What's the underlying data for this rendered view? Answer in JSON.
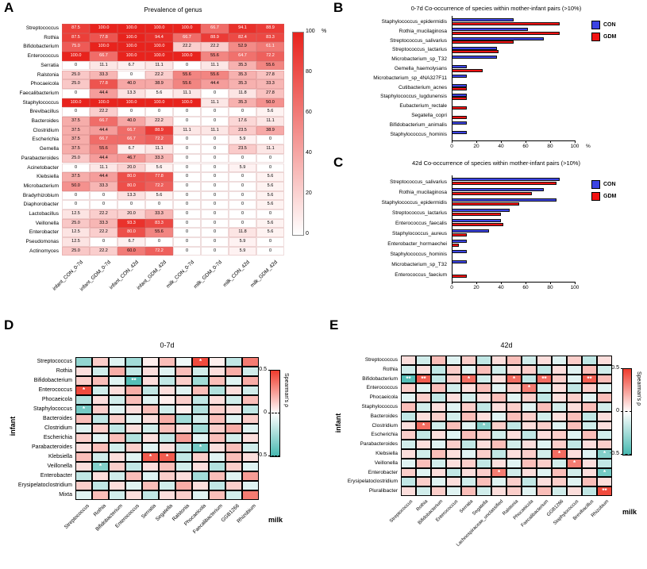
{
  "figure": {
    "panel_labels": {
      "A": "A",
      "B": "B",
      "C": "C",
      "D": "D",
      "E": "E"
    }
  },
  "chart_data": [
    {
      "id": "A",
      "type": "heatmap",
      "title": "Prevalence of genus",
      "rows": [
        "Streptococcus",
        "Rothia",
        "Bifidobacterium",
        "Enterococcus",
        "Serratia",
        "Ralstonia",
        "Phocaeicola",
        "Faecalibacterium",
        "Staphylococcus",
        "Brevibacillus",
        "Bacteroides",
        "Clostridium",
        "Escherichia",
        "Gemella",
        "Parabacteroides",
        "Acinetobacter",
        "Klebsiella",
        "Microbacterium",
        "Bradyrhizobium",
        "Diaphorobacter",
        "Lactobacillus",
        "Veillonella",
        "Enterobacter",
        "Pseudomonas",
        "Actinomyces"
      ],
      "columns": [
        "infant_CON_0-7d",
        "infant_GDM_0-7d",
        "infant_CON_42d",
        "infant_GDM_42d",
        "milk_CON_0-7d",
        "milk_GDM_0-7d",
        "milk_CON_42d",
        "milk_GDM_42d"
      ],
      "values": [
        [
          87.5,
          100.0,
          100.0,
          100.0,
          100.0,
          66.7,
          94.1,
          88.9
        ],
        [
          87.5,
          77.8,
          100.0,
          94.4,
          66.7,
          88.9,
          82.4,
          83.3
        ],
        [
          75.0,
          100.0,
          100.0,
          100.0,
          22.2,
          22.2,
          52.9,
          61.1
        ],
        [
          100.0,
          66.7,
          100.0,
          100.0,
          100.0,
          55.6,
          64.7,
          72.2
        ],
        [
          0,
          11.1,
          6.7,
          11.1,
          0,
          11.1,
          35.3,
          55.6
        ],
        [
          25.0,
          33.3,
          0,
          22.2,
          55.6,
          55.6,
          35.3,
          27.8
        ],
        [
          25.0,
          77.8,
          40.0,
          38.9,
          55.6,
          44.4,
          35.3,
          33.3
        ],
        [
          0,
          44.4,
          13.3,
          5.6,
          11.1,
          0,
          11.8,
          27.8
        ],
        [
          100.0,
          100.0,
          100.0,
          100.0,
          100.0,
          11.1,
          35.3,
          50.0
        ],
        [
          0,
          22.2,
          0,
          0,
          0,
          0,
          0,
          5.6
        ],
        [
          37.5,
          66.7,
          40.0,
          22.2,
          0,
          0,
          17.6,
          11.1
        ],
        [
          37.5,
          44.4,
          66.7,
          88.9,
          11.1,
          11.1,
          23.5,
          38.9
        ],
        [
          37.5,
          66.7,
          66.7,
          72.2,
          0,
          0,
          5.9,
          0
        ],
        [
          37.5,
          55.6,
          6.7,
          11.1,
          0,
          0,
          23.5,
          11.1
        ],
        [
          25.0,
          44.4,
          46.7,
          33.3,
          0,
          0,
          0,
          0
        ],
        [
          0,
          11.1,
          20.0,
          5.6,
          0,
          0,
          5.9,
          0
        ],
        [
          37.5,
          44.4,
          80.0,
          77.8,
          0,
          0,
          0,
          5.6
        ],
        [
          50.0,
          33.3,
          80.0,
          72.2,
          0,
          0,
          0,
          5.6
        ],
        [
          0,
          0,
          13.3,
          5.6,
          0,
          0,
          0,
          5.6
        ],
        [
          0,
          0,
          0,
          0,
          0,
          0,
          0,
          5.6
        ],
        [
          12.5,
          22.2,
          20.0,
          33.3,
          0,
          0,
          0,
          0
        ],
        [
          25.0,
          33.3,
          93.3,
          83.3,
          0,
          0,
          0,
          5.6
        ],
        [
          12.5,
          22.2,
          80.0,
          55.6,
          0,
          0,
          11.8,
          5.6
        ],
        [
          12.5,
          0,
          6.7,
          0,
          0,
          0,
          5.9,
          0
        ],
        [
          25.0,
          22.2,
          60.0,
          72.2,
          0,
          0,
          5.9,
          0
        ]
      ],
      "colorbar": {
        "min": 0,
        "max": 100,
        "ticks": [
          100,
          80,
          60,
          40,
          20,
          0
        ],
        "unit": "%"
      },
      "colors": {
        "low": "#ffffff",
        "high": "#e8231d"
      }
    },
    {
      "id": "B",
      "type": "bar",
      "orientation": "horizontal",
      "title": "0-7d Co-occurrence of species within mother-infant pairs (>10%)",
      "categories": [
        "Staphylococcus_epidermidis",
        "Rothia_mucilaginosa",
        "Streptococcus_salivarius",
        "Streptococcus_lactarius",
        "Microbacterium_sp_T32",
        "Gemella_haemolysans",
        "Microbacterium_sp_4NA327F11",
        "Cutibacterium_acnes",
        "Staphylococcus_lugdunensis",
        "Eubacterium_rectale",
        "Segatella_copri",
        "Bifidobacterium_animalis",
        "Staphylococcus_hominis"
      ],
      "series": [
        {
          "name": "CON",
          "color": "#3b43e3",
          "values": [
            50,
            62,
            75,
            37,
            37,
            12,
            12,
            12,
            12,
            0,
            0,
            12,
            12
          ]
        },
        {
          "name": "GDM",
          "color": "#f21313",
          "values": [
            88,
            88,
            50,
            38,
            0,
            25,
            0,
            12,
            12,
            12,
            12,
            0,
            0
          ]
        }
      ],
      "xlim": [
        0,
        100
      ],
      "xticks": [
        0,
        20,
        40,
        60,
        80,
        100
      ],
      "xunit": "%"
    },
    {
      "id": "C",
      "type": "bar",
      "orientation": "horizontal",
      "title": "42d Co-occurrence of species within mother-infant pairs (>10%)",
      "categories": [
        "Streptococcus_salivarius",
        "Rothia_mucilaginosa",
        "Staphylococcus_epidermidis",
        "Streptococcus_lactarius",
        "Enterococcus_faecalis",
        "Staphylococcus_aureus",
        "Enterobacter_hormaechei",
        "Staphylococcus_hominis",
        "Microbacterium_sp_T32",
        "Enterococcus_faecium"
      ],
      "series": [
        {
          "name": "CON",
          "color": "#3b43e3",
          "values": [
            88,
            75,
            85,
            47,
            40,
            30,
            12,
            12,
            12,
            0
          ]
        },
        {
          "name": "GDM",
          "color": "#f21313",
          "values": [
            85,
            65,
            55,
            40,
            42,
            12,
            6,
            0,
            0,
            12
          ]
        }
      ],
      "xlim": [
        0,
        100
      ],
      "xticks": [
        0,
        20,
        40,
        60,
        80,
        100
      ],
      "xunit": ""
    },
    {
      "id": "D",
      "type": "heatmap",
      "subtype": "correlation",
      "title": "0-7d",
      "ylabel": "infant",
      "xlabel": "milk",
      "rows": [
        "Streptococcus",
        "Rothia",
        "Bifidobacterium",
        "Enterococcus",
        "Phocaeicola",
        "Staphylococcus",
        "Bacteroides",
        "Clostridium",
        "Escherichia",
        "Parabacteroides",
        "Klebsiella",
        "Veillonella",
        "Enterobacter",
        "Erysipelatoclostridium",
        "Mixta"
      ],
      "columns": [
        "Streptococcus",
        "Rothia",
        "Bifidobacterium",
        "Enterococcus",
        "Serratia",
        "Segatella",
        "Ralstonia",
        "Phocaeicola",
        "Faecalibacterium",
        "GGB1266",
        "Rhizobium"
      ],
      "values": [
        [
          -0.35,
          0.15,
          -0.1,
          -0.3,
          0.05,
          0.2,
          -0.05,
          0.55,
          0.05,
          -0.2,
          0.4
        ],
        [
          0.1,
          -0.15,
          0.25,
          -0.2,
          0.1,
          -0.1,
          0.2,
          -0.15,
          0.1,
          0.25,
          -0.15
        ],
        [
          0.15,
          0.2,
          -0.1,
          -0.55,
          0.1,
          -0.2,
          0.15,
          -0.3,
          0.2,
          -0.1,
          0.25
        ],
        [
          0.55,
          -0.15,
          0.1,
          0.25,
          -0.2,
          0.1,
          -0.1,
          0.2,
          -0.25,
          0.1,
          -0.15
        ],
        [
          -0.25,
          0.1,
          -0.15,
          0.2,
          -0.1,
          0.05,
          0.15,
          -0.2,
          0.1,
          -0.15,
          0.2
        ],
        [
          -0.45,
          0.15,
          -0.1,
          0.1,
          0.2,
          -0.15,
          0.05,
          -0.25,
          0.15,
          0.1,
          -0.2
        ],
        [
          0.2,
          -0.2,
          0.15,
          -0.1,
          0.1,
          0.25,
          -0.3,
          -0.15,
          0.2,
          -0.1,
          0.15
        ],
        [
          -0.1,
          0.15,
          -0.2,
          0.1,
          -0.15,
          0.2,
          0.1,
          -0.3,
          0.15,
          0.25,
          -0.1
        ],
        [
          0.15,
          -0.1,
          0.2,
          -0.25,
          0.1,
          -0.2,
          0.3,
          -0.1,
          0.2,
          -0.15,
          0.1
        ],
        [
          0.1,
          0.2,
          -0.15,
          0.15,
          -0.1,
          0.1,
          -0.2,
          -0.45,
          0.1,
          0.2,
          -0.15
        ],
        [
          0.2,
          -0.15,
          0.1,
          -0.1,
          0.5,
          0.5,
          -0.2,
          0.15,
          -0.1,
          0.2,
          0.1
        ],
        [
          0.1,
          -0.4,
          0.15,
          -0.2,
          0.1,
          0.2,
          -0.15,
          0.1,
          -0.25,
          0.15,
          -0.1
        ],
        [
          -0.2,
          0.1,
          -0.15,
          0.2,
          -0.1,
          0.15,
          0.1,
          -0.3,
          0.2,
          -0.1,
          0.3
        ],
        [
          0.15,
          -0.2,
          0.1,
          -0.1,
          0.2,
          -0.15,
          0.25,
          0.1,
          -0.2,
          0.15,
          -0.1
        ],
        [
          -0.1,
          0.2,
          -0.15,
          0.1,
          -0.2,
          0.1,
          0.15,
          -0.1,
          0.2,
          -0.15,
          0.4
        ]
      ],
      "stars": [
        [
          0,
          7,
          "*"
        ],
        [
          2,
          3,
          "**"
        ],
        [
          3,
          0,
          "*"
        ],
        [
          5,
          0,
          "*"
        ],
        [
          9,
          7,
          "*"
        ],
        [
          10,
          4,
          "*"
        ],
        [
          10,
          5,
          "*"
        ],
        [
          11,
          1,
          "*"
        ]
      ],
      "colorbar": {
        "min": -0.5,
        "max": 0.5,
        "ticks": [
          0.5,
          0,
          -0.5
        ],
        "label": "Spearman's ρ"
      },
      "colors": {
        "pos": "#ef3b2c",
        "neg": "#45b8b0"
      }
    },
    {
      "id": "E",
      "type": "heatmap",
      "subtype": "correlation",
      "title": "42d",
      "ylabel": "infant",
      "xlabel": "milk",
      "rows": [
        "Streptococcus",
        "Rothia",
        "Bifidobacterium",
        "Enterococcus",
        "Phocaeicola",
        "Staphylococcus",
        "Bacteroides",
        "Clostridium",
        "Escherichia",
        "Parabacteroides",
        "Klebsiella",
        "Veillonella",
        "Enterobacter",
        "Erysipelatoclostridium",
        "Pluralibacter"
      ],
      "columns": [
        "Streptococcus",
        "Rothia",
        "Bifidobacterium",
        "Enterococcus",
        "Serratia",
        "Segatella",
        "Lachnospiraceae_unclassified",
        "Ralstonia",
        "Phocaeicola",
        "Faecalibacterium",
        "GGB1266",
        "Staphylococcus",
        "Brevibacillus",
        "Rhizobium"
      ],
      "values": [
        [
          0.1,
          -0.15,
          0.2,
          -0.1,
          0.15,
          -0.2,
          0.1,
          0.2,
          -0.15,
          0.1,
          -0.1,
          0.15,
          -0.2,
          0.1
        ],
        [
          -0.15,
          0.1,
          -0.2,
          0.15,
          -0.1,
          0.2,
          -0.15,
          0.1,
          0.15,
          -0.2,
          0.1,
          -0.1,
          0.2,
          -0.15
        ],
        [
          -0.55,
          0.5,
          -0.2,
          0.15,
          0.45,
          -0.15,
          0.1,
          0.45,
          -0.2,
          0.45,
          0.15,
          -0.1,
          0.5,
          0.2
        ],
        [
          0.15,
          -0.1,
          0.2,
          -0.15,
          0.1,
          0.2,
          -0.1,
          0.15,
          0.4,
          -0.15,
          0.1,
          -0.2,
          0.15,
          -0.1
        ],
        [
          -0.1,
          0.15,
          -0.2,
          0.1,
          -0.15,
          0.1,
          0.2,
          -0.1,
          0.15,
          -0.2,
          0.1,
          0.15,
          -0.1,
          0.2
        ],
        [
          0.2,
          -0.15,
          0.1,
          -0.1,
          0.15,
          -0.2,
          0.1,
          0.15,
          -0.1,
          0.2,
          -0.15,
          0.1,
          0.2,
          -0.15
        ],
        [
          -0.2,
          0.1,
          0.15,
          -0.15,
          0.2,
          0.1,
          -0.1,
          0.2,
          0.15,
          -0.15,
          0.1,
          0.2,
          -0.2,
          0.1
        ],
        [
          0.1,
          0.45,
          -0.15,
          0.2,
          -0.1,
          -0.4,
          0.15,
          -0.2,
          0.1,
          0.15,
          -0.1,
          0.2,
          -0.15,
          0.1
        ],
        [
          0.15,
          -0.2,
          0.1,
          -0.1,
          0.2,
          0.15,
          -0.15,
          0.1,
          -0.2,
          0.1,
          0.15,
          -0.1,
          0.2,
          -0.15
        ],
        [
          -0.15,
          0.1,
          -0.1,
          0.15,
          -0.2,
          0.1,
          0.2,
          -0.15,
          0.1,
          -0.1,
          0.15,
          -0.2,
          0.1,
          0.15
        ],
        [
          0.1,
          -0.15,
          0.2,
          0.1,
          -0.1,
          0.15,
          -0.2,
          0.1,
          0.15,
          -0.15,
          0.45,
          0.1,
          -0.1,
          -0.4
        ],
        [
          -0.1,
          0.2,
          -0.15,
          0.1,
          0.15,
          -0.2,
          0.1,
          -0.1,
          0.2,
          0.15,
          -0.15,
          0.4,
          0.1,
          -0.2
        ],
        [
          0.15,
          -0.1,
          0.1,
          -0.2,
          0.1,
          0.15,
          0.4,
          -0.15,
          0.1,
          -0.1,
          0.2,
          -0.15,
          0.1,
          -0.45
        ],
        [
          -0.2,
          0.15,
          -0.1,
          0.1,
          -0.15,
          0.2,
          -0.1,
          0.15,
          -0.2,
          0.1,
          0.15,
          -0.1,
          0.2,
          0.1
        ],
        [
          0.1,
          -0.15,
          0.15,
          -0.1,
          0.2,
          -0.15,
          0.1,
          0.15,
          -0.1,
          0.2,
          -0.15,
          0.1,
          -0.2,
          0.55
        ]
      ],
      "stars": [
        [
          2,
          0,
          "**"
        ],
        [
          2,
          1,
          "**"
        ],
        [
          2,
          4,
          "*"
        ],
        [
          2,
          7,
          "*"
        ],
        [
          2,
          9,
          "**"
        ],
        [
          2,
          12,
          "**"
        ],
        [
          3,
          8,
          "*"
        ],
        [
          7,
          1,
          "*"
        ],
        [
          7,
          5,
          "*"
        ],
        [
          10,
          10,
          "*"
        ],
        [
          10,
          13,
          "*"
        ],
        [
          11,
          11,
          "*"
        ],
        [
          12,
          6,
          "*"
        ],
        [
          12,
          13,
          "*"
        ],
        [
          14,
          13,
          "**"
        ]
      ],
      "colorbar": {
        "min": -0.5,
        "max": 0.5,
        "ticks": [
          0.5,
          0,
          -0.5
        ],
        "label": "Spearman's ρ"
      },
      "colors": {
        "pos": "#ef3b2c",
        "neg": "#45b8b0"
      }
    }
  ]
}
